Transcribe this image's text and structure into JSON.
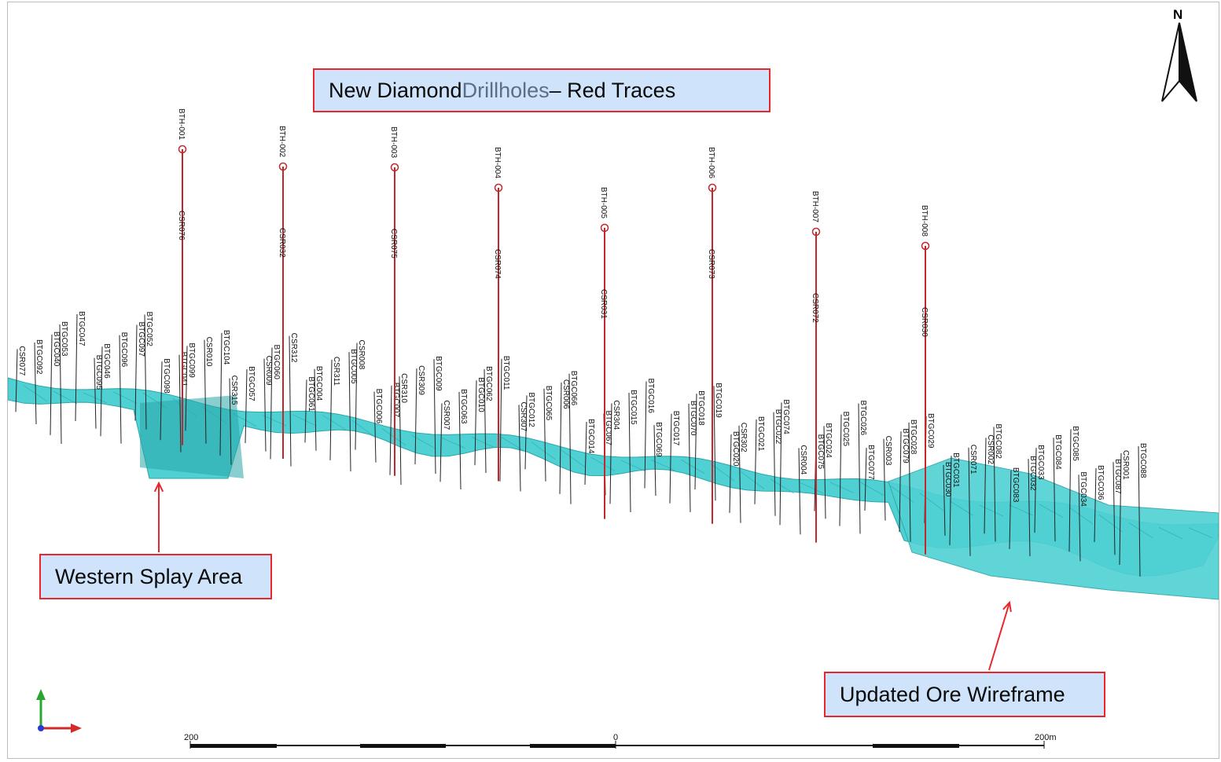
{
  "title": {
    "prefix": "New Diamond ",
    "accent": "Drillholes",
    "suffix": " – Red Traces"
  },
  "callouts": {
    "western_splay": "Western Splay Area",
    "ore_wireframe": "Updated Ore Wireframe"
  },
  "north_label": "N",
  "scale": {
    "left": "200",
    "middle": "0",
    "right": "200m"
  },
  "colors": {
    "wireframe": "#4fd1d4",
    "wireframe_dark": "#2aa6a8",
    "new_trace": "#c1272d",
    "callout_fill": "#cfe3fb",
    "callout_border": "#e8262b",
    "arrow": "#e8262b"
  },
  "new_drillholes": [
    {
      "id": "BTH-001",
      "csr": "CSR076"
    },
    {
      "id": "BTH-002",
      "csr": "CSR032"
    },
    {
      "id": "BTH-003",
      "csr": "CSR075"
    },
    {
      "id": "BTH-004",
      "csr": "CSR074"
    },
    {
      "id": "BTH-005",
      "csr": "CSR031"
    },
    {
      "id": "BTH-006",
      "csr": "CSR073"
    },
    {
      "id": "BTH-007",
      "csr": "CSR072"
    },
    {
      "id": "BTH-008",
      "csr": "CSR030"
    }
  ],
  "existing_holes": [
    "CSR077",
    "BTGC092",
    "BTGC040",
    "BTGC053",
    "BTGC047",
    "BTGC095",
    "BTGC046",
    "BTGC096",
    "BTGC097",
    "BTGC052",
    "BTGC098",
    "BTGC041",
    "BTGC099",
    "CSR010",
    "BTGC104",
    "CSR315",
    "BTGC057",
    "CSR009",
    "BTGC060",
    "CSR312",
    "BTGC061",
    "BTGC004",
    "CSR311",
    "BTGC005",
    "CSR008",
    "BTGC006",
    "BTGC007",
    "CSR310",
    "CSR309",
    "BTGC009",
    "CSR007",
    "BTGC063",
    "BTGC010",
    "BTGC062",
    "BTGC011",
    "CSR307",
    "BTGC012",
    "BTGC065",
    "CSR006",
    "BTGC066",
    "BTGC014",
    "BTGC067",
    "CSR304",
    "BTGC015",
    "BTGC016",
    "BTGC069",
    "BTGC017",
    "BTGC070",
    "BTGC018",
    "BTGC019",
    "BTGC020",
    "CSR302",
    "BTGC021",
    "BTGC022",
    "BTGC074",
    "CSR004",
    "BTGC075",
    "BTGC024",
    "BTGC025",
    "BTGC026",
    "BTGC077",
    "CSR003",
    "BTGC079",
    "BTGC028",
    "BTGC029",
    "BTGC030",
    "BTGC031",
    "CSR071",
    "CSR002",
    "BTGC082",
    "BTGC083",
    "BTGC032",
    "BTGC033",
    "BTGC084",
    "BTGC085",
    "BTGC034",
    "BTGC036",
    "BTGC087",
    "CSR001",
    "BTGC088"
  ]
}
